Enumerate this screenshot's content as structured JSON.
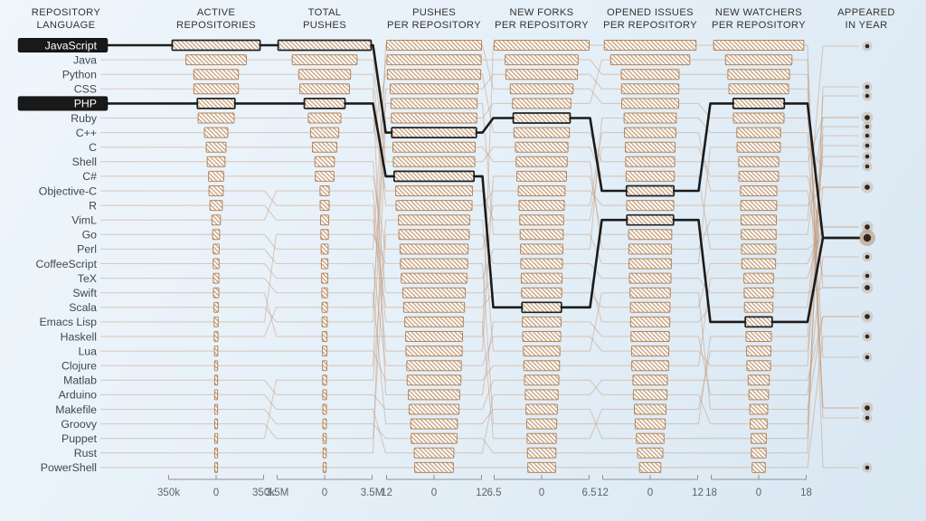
{
  "chart_data": {
    "type": "parallel-ranking-bars",
    "row_labels_header": [
      "REPOSITORY",
      "LANGUAGE"
    ],
    "year_header": [
      "APPEARED",
      "IN YEAR"
    ],
    "highlighted_languages": [
      "JavaScript",
      "PHP"
    ],
    "colors": {
      "background_top": "#eff6fc",
      "background_bottom": "#d9e7f2",
      "bar_hatch": "#b0784e",
      "bar_border": "#b28257",
      "bar_fill": "#fffdf8",
      "connector": "#c39a7a",
      "label_line": "#a9b2b8",
      "highlight": "#1b1b1b",
      "dot_fill": "#32261b",
      "dot_halo": "#a67c52",
      "header_text": "#333333",
      "label_text": "#41474b",
      "axis_text": "#5f6368"
    },
    "languages": [
      {
        "name": "JavaScript",
        "appeared": 1995,
        "highlighted": true
      },
      {
        "name": "Java",
        "appeared": 1995,
        "highlighted": false
      },
      {
        "name": "Python",
        "appeared": 1991,
        "highlighted": false
      },
      {
        "name": "CSS",
        "appeared": 1996,
        "highlighted": false
      },
      {
        "name": "PHP",
        "appeared": 1995,
        "highlighted": true
      },
      {
        "name": "Ruby",
        "appeared": 1995,
        "highlighted": false
      },
      {
        "name": "C++",
        "appeared": 1983,
        "highlighted": false
      },
      {
        "name": "C",
        "appeared": 1972,
        "highlighted": false
      },
      {
        "name": "Shell",
        "appeared": 1989,
        "highlighted": false
      },
      {
        "name": "C#",
        "appeared": 2000,
        "highlighted": false
      },
      {
        "name": "Objective-C",
        "appeared": 1983,
        "highlighted": false
      },
      {
        "name": "R",
        "appeared": 1993,
        "highlighted": false
      },
      {
        "name": "VimL",
        "appeared": 1991,
        "highlighted": false
      },
      {
        "name": "Go",
        "appeared": 2009,
        "highlighted": false
      },
      {
        "name": "Perl",
        "appeared": 1987,
        "highlighted": false
      },
      {
        "name": "CoffeeScript",
        "appeared": 2009,
        "highlighted": false
      },
      {
        "name": "TeX",
        "appeared": 1978,
        "highlighted": false
      },
      {
        "name": "Swift",
        "appeared": 2014,
        "highlighted": false
      },
      {
        "name": "Scala",
        "appeared": 2003,
        "highlighted": false
      },
      {
        "name": "Emacs Lisp",
        "appeared": 1985,
        "highlighted": false
      },
      {
        "name": "Haskell",
        "appeared": 1990,
        "highlighted": false
      },
      {
        "name": "Lua",
        "appeared": 1993,
        "highlighted": false
      },
      {
        "name": "Clojure",
        "appeared": 2007,
        "highlighted": false
      },
      {
        "name": "Matlab",
        "appeared": 1984,
        "highlighted": false
      },
      {
        "name": "Arduino",
        "appeared": 2005,
        "highlighted": false
      },
      {
        "name": "Makefile",
        "appeared": 1977,
        "highlighted": false
      },
      {
        "name": "Groovy",
        "appeared": 2003,
        "highlighted": false
      },
      {
        "name": "Puppet",
        "appeared": 2005,
        "highlighted": false
      },
      {
        "name": "Rust",
        "appeared": 2010,
        "highlighted": false
      },
      {
        "name": "PowerShell",
        "appeared": 2006,
        "highlighted": false
      }
    ],
    "metrics": [
      {
        "key": "active_repositories",
        "header": [
          "ACTIVE",
          "REPOSITORIES"
        ],
        "axis_labels": [
          "350k",
          "0",
          "350k"
        ],
        "axis_max": 350000,
        "ranking": [
          [
            "JavaScript",
            323938
          ],
          [
            "Java",
            222852
          ],
          [
            "Python",
            164852
          ],
          [
            "CSS",
            164585
          ],
          [
            "PHP",
            138771
          ],
          [
            "Ruby",
            132848
          ],
          [
            "C++",
            86505
          ],
          [
            "C",
            73075
          ],
          [
            "Shell",
            65670
          ],
          [
            "C#",
            56062
          ],
          [
            "Objective-C",
            52595
          ],
          [
            "R",
            45717
          ],
          [
            "VimL",
            31783
          ],
          [
            "Go",
            25699
          ],
          [
            "Perl",
            22234
          ],
          [
            "CoffeeScript",
            21913
          ],
          [
            "TeX",
            20618
          ],
          [
            "Swift",
            20272
          ],
          [
            "Scala",
            15966
          ],
          [
            "Emacs Lisp",
            15286
          ],
          [
            "Haskell",
            14175
          ],
          [
            "Lua",
            12575
          ],
          [
            "Clojure",
            11180
          ],
          [
            "Matlab",
            11116
          ],
          [
            "Arduino",
            10910
          ],
          [
            "Makefile",
            10192
          ],
          [
            "Groovy",
            9063
          ],
          [
            "Puppet",
            8773
          ],
          [
            "Rust",
            8323
          ],
          [
            "PowerShell",
            8305
          ]
        ]
      },
      {
        "key": "total_pushes",
        "header": [
          "TOTAL",
          "PUSHES"
        ],
        "axis_labels": [
          "3.5M",
          "0",
          "3.5M"
        ],
        "axis_max": 3500000,
        "ranking": [
          [
            "JavaScript",
            3430000
          ],
          [
            "Java",
            2390000
          ],
          [
            "Python",
            1910000
          ],
          [
            "CSS",
            1830000
          ],
          [
            "PHP",
            1500000
          ],
          [
            "Ruby",
            1200000
          ],
          [
            "C++",
            1040000
          ],
          [
            "C",
            900000
          ],
          [
            "Shell",
            720000
          ],
          [
            "C#",
            690000
          ],
          [
            "VimL",
            340000
          ],
          [
            "Objective-C",
            330000
          ],
          [
            "R",
            300000
          ],
          [
            "Emacs Lisp",
            280000
          ],
          [
            "Go",
            260000
          ],
          [
            "Perl",
            240000
          ],
          [
            "CoffeeScript",
            230000
          ],
          [
            "TeX",
            210000
          ],
          [
            "Haskell",
            200000
          ],
          [
            "Scala",
            190000
          ],
          [
            "Swift",
            180000
          ],
          [
            "Lua",
            170000
          ],
          [
            "Clojure",
            160000
          ],
          [
            "Puppet",
            150000
          ],
          [
            "Matlab",
            140000
          ],
          [
            "Arduino",
            135000
          ],
          [
            "Makefile",
            130000
          ],
          [
            "Groovy",
            120000
          ],
          [
            "Rust",
            115000
          ],
          [
            "PowerShell",
            110000
          ]
        ]
      },
      {
        "key": "pushes_per_repository",
        "header": [
          "PUSHES",
          "PER REPOSITORY"
        ],
        "axis_labels": [
          "12",
          "0",
          "12"
        ],
        "axis_max": 12,
        "ranking": [
          [
            "Scala",
            12.0
          ],
          [
            "Go",
            11.9
          ],
          [
            "C++",
            11.8
          ],
          [
            "Clojure",
            11.1
          ],
          [
            "Haskell",
            10.9
          ],
          [
            "Rust",
            10.8
          ],
          [
            "JavaScript",
            10.7
          ],
          [
            "C",
            10.4
          ],
          [
            "Java",
            10.3
          ],
          [
            "PHP",
            10.1
          ],
          [
            "Ruby",
            9.7
          ],
          [
            "Python",
            9.6
          ],
          [
            "Puppet",
            9.0
          ],
          [
            "Groovy",
            8.9
          ],
          [
            "C#",
            8.6
          ],
          [
            "Emacs Lisp",
            8.5
          ],
          [
            "CoffeeScript",
            8.3
          ],
          [
            "Shell",
            7.9
          ],
          [
            "R",
            7.7
          ],
          [
            "VimL",
            7.4
          ],
          [
            "Swift",
            7.2
          ],
          [
            "Objective-C",
            7.1
          ],
          [
            "Perl",
            6.9
          ],
          [
            "Lua",
            6.8
          ],
          [
            "CSS",
            6.5
          ],
          [
            "Matlab",
            6.3
          ],
          [
            "TeX",
            5.9
          ],
          [
            "Makefile",
            5.8
          ],
          [
            "Arduino",
            5.0
          ],
          [
            "PowerShell",
            4.9
          ]
        ]
      },
      {
        "key": "new_forks_per_repository",
        "header": [
          "NEW FORKS",
          "PER REPOSITORY"
        ],
        "axis_labels": [
          "6.5",
          "0",
          "6.5"
        ],
        "axis_max": 6.5,
        "ranking": [
          [
            "Swift",
            6.5
          ],
          [
            "Go",
            5.0
          ],
          [
            "Clojure",
            4.9
          ],
          [
            "Scala",
            4.3
          ],
          [
            "Rust",
            4.0
          ],
          [
            "JavaScript",
            3.9
          ],
          [
            "C++",
            3.8
          ],
          [
            "Java",
            3.6
          ],
          [
            "C",
            3.5
          ],
          [
            "Objective-C",
            3.4
          ],
          [
            "Python",
            3.2
          ],
          [
            "C#",
            3.1
          ],
          [
            "Ruby",
            3.0
          ],
          [
            "Haskell",
            2.95
          ],
          [
            "CoffeeScript",
            2.9
          ],
          [
            "Groovy",
            2.85
          ],
          [
            "Shell",
            2.8
          ],
          [
            "R",
            2.75
          ],
          [
            "PHP",
            2.7
          ],
          [
            "CSS",
            2.65
          ],
          [
            "Perl",
            2.6
          ],
          [
            "Puppet",
            2.5
          ],
          [
            "Lua",
            2.45
          ],
          [
            "Matlab",
            2.35
          ],
          [
            "Arduino",
            2.25
          ],
          [
            "TeX",
            2.15
          ],
          [
            "Emacs Lisp",
            2.05
          ],
          [
            "VimL",
            2.0
          ],
          [
            "Makefile",
            1.95
          ],
          [
            "PowerShell",
            1.9
          ]
        ]
      },
      {
        "key": "opened_issues_per_repository",
        "header": [
          "OPENED ISSUES",
          "PER REPOSITORY"
        ],
        "axis_labels": [
          "12",
          "0",
          "12"
        ],
        "axis_max": 12,
        "ranking": [
          [
            "Swift",
            11.6
          ],
          [
            "Rust",
            10.0
          ],
          [
            "Go",
            7.3
          ],
          [
            "Clojure",
            7.25
          ],
          [
            "Scala",
            7.2
          ],
          [
            "CoffeeScript",
            6.6
          ],
          [
            "C#",
            6.5
          ],
          [
            "Ruby",
            6.3
          ],
          [
            "C++",
            6.2
          ],
          [
            "Java",
            6.1
          ],
          [
            "JavaScript",
            6.0
          ],
          [
            "Python",
            5.95
          ],
          [
            "PHP",
            5.9
          ],
          [
            "Objective-C",
            5.45
          ],
          [
            "C",
            5.4
          ],
          [
            "Haskell",
            5.35
          ],
          [
            "Groovy",
            5.25
          ],
          [
            "Puppet",
            5.1
          ],
          [
            "R",
            5.0
          ],
          [
            "Shell",
            4.95
          ],
          [
            "CSS",
            4.85
          ],
          [
            "Perl",
            4.7
          ],
          [
            "Lua",
            4.65
          ],
          [
            "Arduino",
            4.35
          ],
          [
            "Matlab",
            4.25
          ],
          [
            "VimL",
            4.0
          ],
          [
            "Emacs Lisp",
            3.8
          ],
          [
            "TeX",
            3.5
          ],
          [
            "Makefile",
            3.2
          ],
          [
            "PowerShell",
            2.7
          ]
        ]
      },
      {
        "key": "new_watchers_per_repository",
        "header": [
          "NEW WATCHERS",
          "PER REPOSITORY"
        ],
        "axis_labels": [
          "18",
          "0",
          "18"
        ],
        "axis_max": 18,
        "ranking": [
          [
            "Swift",
            17.1
          ],
          [
            "Rust",
            12.6
          ],
          [
            "Go",
            11.7
          ],
          [
            "Clojure",
            11.3
          ],
          [
            "JavaScript",
            9.7
          ],
          [
            "Scala",
            9.6
          ],
          [
            "CoffeeScript",
            8.3
          ],
          [
            "Haskell",
            8.2
          ],
          [
            "C++",
            7.6
          ],
          [
            "Ruby",
            7.5
          ],
          [
            "C#",
            6.9
          ],
          [
            "Python",
            6.8
          ],
          [
            "C",
            6.7
          ],
          [
            "Objective-C",
            6.6
          ],
          [
            "Java",
            6.5
          ],
          [
            "R",
            6.4
          ],
          [
            "Lua",
            5.6
          ],
          [
            "Groovy",
            5.5
          ],
          [
            "Shell",
            5.4
          ],
          [
            "PHP",
            5.1
          ],
          [
            "Emacs Lisp",
            4.8
          ],
          [
            "VimL",
            4.6
          ],
          [
            "Perl",
            4.5
          ],
          [
            "Arduino",
            4.0
          ],
          [
            "CSS",
            3.7
          ],
          [
            "Puppet",
            3.4
          ],
          [
            "Matlab",
            3.2
          ],
          [
            "TeX",
            2.9
          ],
          [
            "Makefile",
            2.8
          ],
          [
            "PowerShell",
            2.5
          ]
        ]
      }
    ]
  }
}
